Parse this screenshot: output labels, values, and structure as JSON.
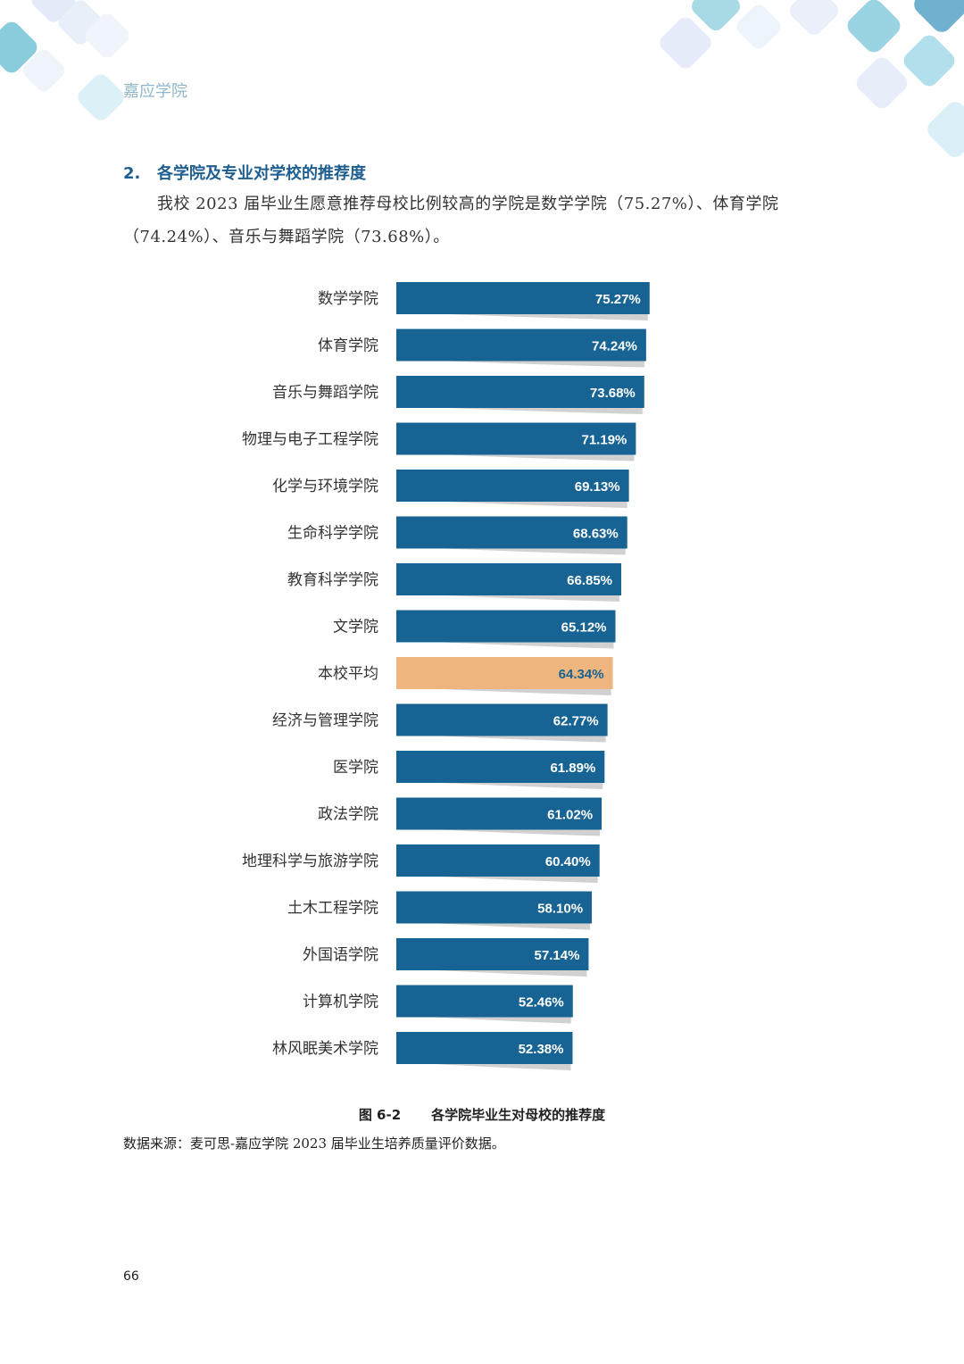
{
  "header": {
    "title": "嘉应学院"
  },
  "section": {
    "number": "2.",
    "heading": "各学院及专业对学校的推荐度",
    "paragraph": "我校 2023 届毕业生愿意推荐母校比例较高的学院是数学学院（75.27%）、体育学院（74.24%）、音乐与舞蹈学院（73.68%）。"
  },
  "figure": {
    "number": "图 6-2",
    "title": "各学院毕业生对母校的推荐度",
    "source": "数据来源：麦可思-嘉应学院 2023 届毕业生培养质量评价数据。"
  },
  "page_number": "66",
  "colors": {
    "bar": "#176494",
    "bar_highlight": "#eeb57f",
    "label_on_bar": "#ffffff",
    "label_on_highlight": "#176494",
    "header_title": "#8fb7c9",
    "heading": "#1f5f8f"
  },
  "chart_data": {
    "type": "bar",
    "orientation": "horizontal",
    "categories": [
      "数学学院",
      "体育学院",
      "音乐与舞蹈学院",
      "物理与电子工程学院",
      "化学与环境学院",
      "生命科学学院",
      "教育科学学院",
      "文学院",
      "本校平均",
      "经济与管理学院",
      "医学院",
      "政法学院",
      "地理科学与旅游学院",
      "土木工程学院",
      "外国语学院",
      "计算机学院",
      "林风眠美术学院"
    ],
    "values": [
      75.27,
      74.24,
      73.68,
      71.19,
      69.13,
      68.63,
      66.85,
      65.12,
      64.34,
      62.77,
      61.89,
      61.02,
      60.4,
      58.1,
      57.14,
      52.46,
      52.38
    ],
    "value_labels": [
      "75.27%",
      "74.24%",
      "73.68%",
      "71.19%",
      "69.13%",
      "68.63%",
      "66.85%",
      "65.12%",
      "64.34%",
      "62.77%",
      "61.89%",
      "61.02%",
      "60.40%",
      "58.10%",
      "57.14%",
      "52.46%",
      "52.38%"
    ],
    "highlight_category": "本校平均",
    "unit": "%",
    "xlim": [
      0,
      100
    ],
    "grid": false,
    "legend": "none"
  }
}
